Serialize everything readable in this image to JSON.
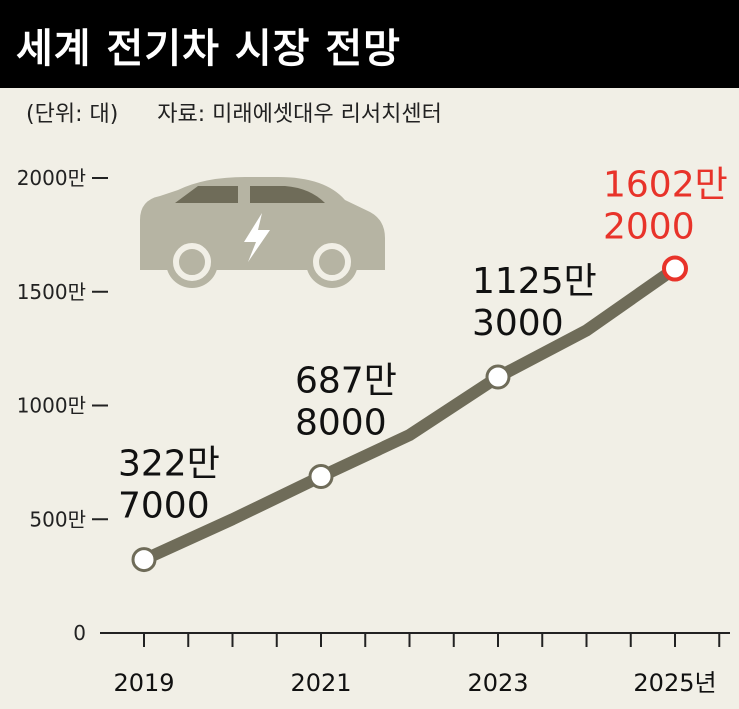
{
  "header": {
    "title": "세계 전기차 시장 전망",
    "unit_note": "(단위: 대)",
    "source_note": "자료: 미래에셋대우 리서치센터"
  },
  "colors": {
    "background": "#f1efe6",
    "header_bg": "#000000",
    "line": "#6f6c59",
    "highlight": "#e8332a",
    "car": "#b6b4a3"
  },
  "icons": [
    "electric-car-icon",
    "lightning-bolt-icon"
  ],
  "chart_data": {
    "type": "line",
    "title": "세계 전기차 시장 전망",
    "ylabel": "(단위: 대)",
    "xlabel": "",
    "x": [
      2019,
      2020,
      2021,
      2022,
      2023,
      2024,
      2025
    ],
    "series": [
      {
        "values": [
          3227000,
          5000000,
          6878000,
          8700000,
          11253000,
          13300000,
          16022000
        ]
      }
    ],
    "x_tick_labels": [
      "2019",
      "2021",
      "2023",
      "2025년"
    ],
    "x_tick_values": [
      2019,
      2021,
      2023,
      2025
    ],
    "y_tick_labels": [
      "0",
      "500만",
      "1000만",
      "1500만",
      "2000만"
    ],
    "y_tick_values": [
      0,
      5000000,
      10000000,
      15000000,
      20000000
    ],
    "ylim": [
      0,
      20000000
    ],
    "xlim": [
      2019,
      2025.5
    ],
    "annotations": [
      {
        "x": 2019,
        "y": 3227000,
        "line1": "322만",
        "line2": "7000",
        "highlight": false
      },
      {
        "x": 2021,
        "y": 6878000,
        "line1": "687만",
        "line2": "8000",
        "highlight": false
      },
      {
        "x": 2023,
        "y": 11253000,
        "line1": "1125만",
        "line2": "3000",
        "highlight": false
      },
      {
        "x": 2025,
        "y": 16022000,
        "line1": "1602만",
        "line2": "2000",
        "highlight": true
      }
    ],
    "grid": false,
    "legend": "none"
  }
}
